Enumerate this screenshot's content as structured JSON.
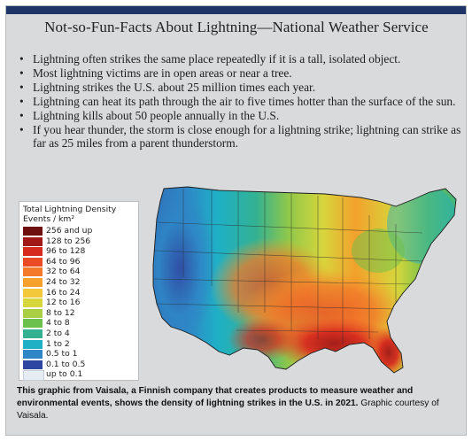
{
  "title": "Not-so-Fun-Facts About Lightning—National Weather Service",
  "facts": [
    "Lightning often strikes the same place repeatedly if it is a tall, isolated object.",
    "Most lightning victims are in open areas or near a tree.",
    "Lightning strikes the U.S. about 25 million times each year.",
    "Lightning can heat its path through the air to five times hotter than the surface of the sun.",
    "Lightning kills about 50 people annually in the U.S.",
    "If you hear thunder, the storm is close enough for a lightning strike; lightning can strike as far as 25 miles from a parent thunderstorm."
  ],
  "legend": {
    "title_line1": "Total Lightning Density",
    "title_line2": "Events / km²",
    "items": [
      {
        "label": "256 and up",
        "color": "#6e1010"
      },
      {
        "label": "128 to 256",
        "color": "#a01818"
      },
      {
        "label": "96 to 128",
        "color": "#d62a1f"
      },
      {
        "label": "64 to 96",
        "color": "#ea4a24"
      },
      {
        "label": "32 to 64",
        "color": "#f27a2a"
      },
      {
        "label": "24 to 32",
        "color": "#f5a12c"
      },
      {
        "label": "16 to 24",
        "color": "#f3c83a"
      },
      {
        "label": "12 to 16",
        "color": "#d7d63c"
      },
      {
        "label": "8 to 12",
        "color": "#a8cf44"
      },
      {
        "label": "4 to 8",
        "color": "#6cc04c"
      },
      {
        "label": "2 to 4",
        "color": "#33b191"
      },
      {
        "label": "1 to 2",
        "color": "#1fb0c6"
      },
      {
        "label": "0.5 to 1",
        "color": "#2f86c6"
      },
      {
        "label": "0.1 to 0.5",
        "color": "#2f46a0"
      },
      {
        "label": "up to 0.1",
        "color": "#e6ecf3"
      }
    ]
  },
  "caption": {
    "bold": "This graphic from Vaisala, a Finnish company that creates products to measure weather and environmental events, shows the density of lightning strikes in the U.S. in 2021.",
    "normal": "Graphic courtesy of Vaisala."
  }
}
